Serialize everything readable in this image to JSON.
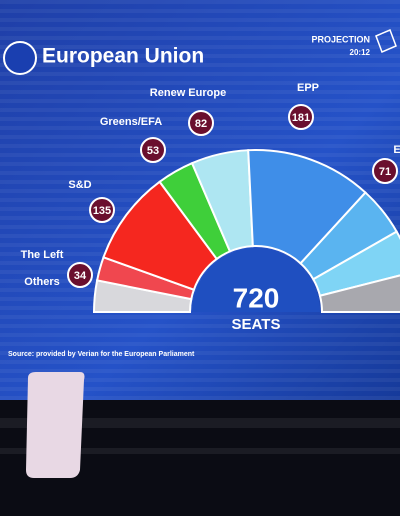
{
  "chart_data": {
    "type": "parliament",
    "title": "European Union",
    "badge": "PROJECTION",
    "time": "20:12",
    "total": 720,
    "total_label": "SEATS",
    "source": "Source: provided by Verian for the European Parliament",
    "categories": [
      "Others",
      "The Left",
      "S&D",
      "Greens/EFA",
      "Renew Europe",
      "EPP",
      "E",
      null,
      null
    ],
    "values": [
      45,
      34,
      135,
      53,
      82,
      181,
      71,
      62,
      57
    ],
    "value_labels": [
      null,
      "34",
      "135",
      "53",
      "82",
      "181",
      "71",
      null,
      null
    ],
    "colors": [
      "#d8d8dc",
      "#f0474f",
      "#f5271f",
      "#3fcf3a",
      "#aee6f2",
      "#3f8ee8",
      "#5ab4f0",
      "#7fd4f5",
      "#a8a8ae"
    ],
    "bubble_color": "#6a0f2e"
  }
}
